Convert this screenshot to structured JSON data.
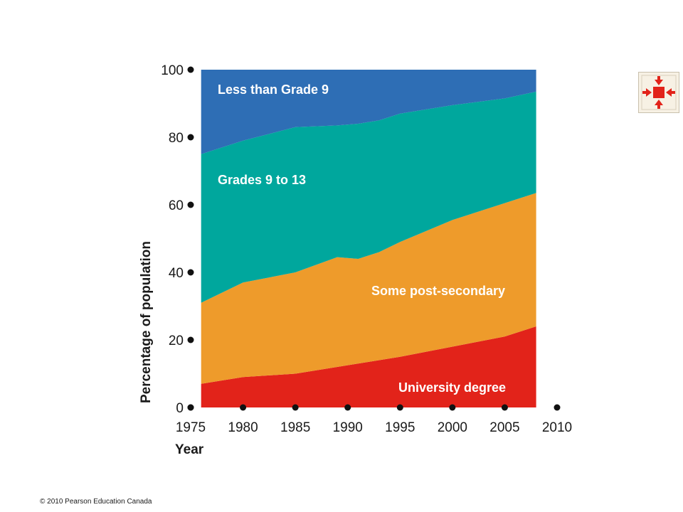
{
  "chart_data": {
    "type": "area",
    "stacked": true,
    "xlabel": "Year",
    "ylabel": "Percentage of population",
    "xlim": [
      1975,
      2010
    ],
    "ylim": [
      0,
      100
    ],
    "x_ticks": [
      1975,
      1980,
      1985,
      1990,
      1995,
      2000,
      2005,
      2010
    ],
    "y_ticks": [
      0,
      20,
      40,
      60,
      80,
      100
    ],
    "x": [
      1976,
      1980,
      1985,
      1989,
      1991,
      1993,
      1995,
      2000,
      2005,
      2008
    ],
    "series": [
      {
        "name": "University degree",
        "color": "#e2231a",
        "values": [
          7,
          9,
          10,
          12,
          13,
          14,
          15,
          18,
          21,
          24
        ]
      },
      {
        "name": "Some post-secondary",
        "color": "#ee9b2b",
        "values": [
          24,
          28,
          30,
          32.5,
          31,
          32,
          34,
          37.5,
          39.5,
          39.5
        ]
      },
      {
        "name": "Grades 9 to 13",
        "color": "#00a79d",
        "values": [
          44,
          42,
          43,
          39,
          40,
          39,
          38,
          34,
          31,
          30
        ]
      },
      {
        "name": "Less than Grade 9",
        "color": "#2e6eb5",
        "values": [
          25,
          21,
          17,
          16.5,
          16,
          15,
          13,
          10.5,
          8.5,
          6.5
        ]
      }
    ],
    "grid": false,
    "legend": "inline labels"
  },
  "footer": {
    "copyright": "© 2010 Pearson Education Canada"
  },
  "nav": {
    "icon": "expand-arrows-icon",
    "color": "#e2231a"
  }
}
